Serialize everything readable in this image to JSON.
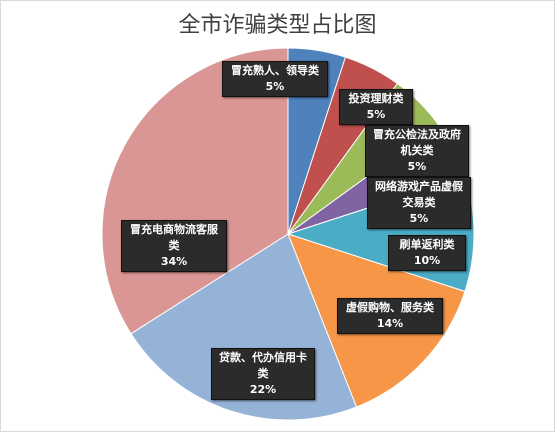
{
  "chart_data": {
    "type": "pie",
    "title": "全市诈骗类型占比图",
    "categories": [
      "冒充熟人、领导类",
      "投资理财类",
      "冒充公检法及政府机关类",
      "网络游戏产品虚假交易类",
      "刷单返利类",
      "虚假购物、服务类",
      "贷款、代办信用卡类",
      "冒充电商物流客服类"
    ],
    "values": [
      5,
      5,
      5,
      5,
      10,
      14,
      22,
      34
    ],
    "value_labels": [
      "5%",
      "5%",
      "5%",
      "5%",
      "10%",
      "14%",
      "22%",
      "34%"
    ],
    "colors": [
      "#4F81BD",
      "#C0504D",
      "#9BBB59",
      "#8064A2",
      "#4BACC6",
      "#F79646",
      "#95B3D7",
      "#DA9694"
    ]
  }
}
